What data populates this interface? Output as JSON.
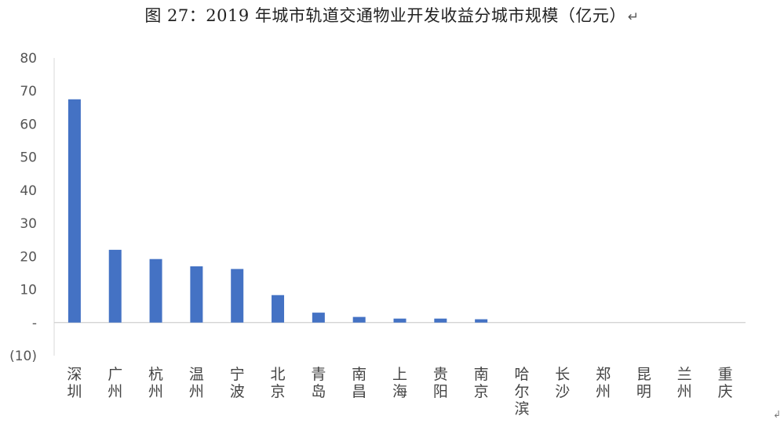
{
  "title": "图 27：2019 年城市轨道交通物业开发收益分城市规模（亿元）",
  "title_mark": "↵",
  "corner_mark": "↲",
  "chart_data": {
    "type": "bar",
    "title": "图 27：2019 年城市轨道交通物业开发收益分城市规模（亿元）",
    "xlabel": "",
    "ylabel": "",
    "ylim": [
      -10,
      80
    ],
    "grid": false,
    "bar_color": "#4472C4",
    "y_ticks": [
      {
        "value": 80,
        "label": "80"
      },
      {
        "value": 70,
        "label": "70"
      },
      {
        "value": 60,
        "label": "60"
      },
      {
        "value": 50,
        "label": "50"
      },
      {
        "value": 40,
        "label": "40"
      },
      {
        "value": 30,
        "label": "30"
      },
      {
        "value": 20,
        "label": "20"
      },
      {
        "value": 10,
        "label": "10"
      },
      {
        "value": 0,
        "label": "-"
      },
      {
        "value": -10,
        "label": "(10)"
      }
    ],
    "categories": [
      "深圳",
      "广州",
      "杭州",
      "温州",
      "宁波",
      "北京",
      "青岛",
      "南昌",
      "上海",
      "贵阳",
      "南京",
      "哈尔滨",
      "长沙",
      "郑州",
      "昆明",
      "兰州",
      "重庆"
    ],
    "values": [
      67.5,
      22,
      19.2,
      17,
      16.2,
      8.3,
      3,
      1.7,
      1.2,
      1.2,
      1,
      0,
      0,
      0,
      0,
      0,
      0
    ]
  }
}
